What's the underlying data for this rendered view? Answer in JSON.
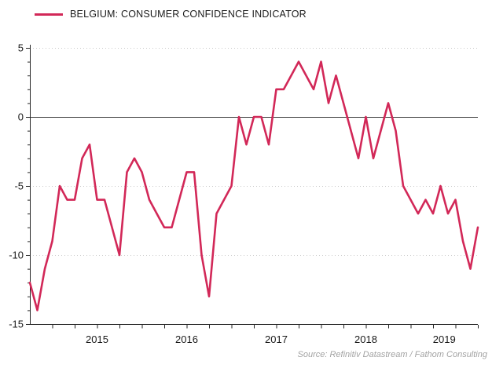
{
  "legend": {
    "label": "BELGIUM: CONSUMER CONFIDENCE INDICATOR"
  },
  "source": "Source: Refinitiv Datastream / Fathom Consulting",
  "colors": {
    "line": "#d22858",
    "zero_line": "#3f3f3f",
    "grid": "#c9c9c9",
    "axis": "#262626",
    "tick_label": "#1a1a1a",
    "source_text": "#a3a3a3",
    "background": "#ffffff"
  },
  "chart_data": {
    "type": "line",
    "title": "BELGIUM: CONSUMER CONFIDENCE INDICATOR",
    "frequency": "monthly",
    "x": [
      "2014-10",
      "2014-11",
      "2014-12",
      "2015-01",
      "2015-02",
      "2015-03",
      "2015-04",
      "2015-05",
      "2015-06",
      "2015-07",
      "2015-08",
      "2015-09",
      "2015-10",
      "2015-11",
      "2015-12",
      "2016-01",
      "2016-02",
      "2016-03",
      "2016-04",
      "2016-05",
      "2016-06",
      "2016-07",
      "2016-08",
      "2016-09",
      "2016-10",
      "2016-11",
      "2016-12",
      "2017-01",
      "2017-02",
      "2017-03",
      "2017-04",
      "2017-05",
      "2017-06",
      "2017-07",
      "2017-08",
      "2017-09",
      "2017-10",
      "2017-11",
      "2017-12",
      "2018-01",
      "2018-02",
      "2018-03",
      "2018-04",
      "2018-05",
      "2018-06",
      "2018-07",
      "2018-08",
      "2018-09",
      "2018-10",
      "2018-11",
      "2018-12",
      "2019-01",
      "2019-02",
      "2019-03",
      "2019-04",
      "2019-05",
      "2019-06",
      "2019-07",
      "2019-08",
      "2019-09",
      "2019-10"
    ],
    "values": [
      -12,
      -14,
      -11,
      -9,
      -5,
      -6,
      -6,
      -3,
      -2,
      -6,
      -6,
      -8,
      -10,
      -4,
      -3,
      -4,
      -6,
      -7,
      -8,
      -8,
      -6,
      -4,
      -4,
      -10,
      -13,
      -7,
      -6,
      -5,
      0,
      -2,
      0,
      0,
      -2,
      2,
      2,
      3,
      4,
      3,
      2,
      4,
      1,
      3,
      1,
      -1,
      -3,
      0,
      -3,
      -1,
      1,
      -1,
      -5,
      -6,
      -7,
      -6,
      -7,
      -5,
      -7,
      -6,
      -9,
      -11,
      -8
    ],
    "ylim": [
      -15,
      5
    ],
    "yticks_major": [
      5,
      0,
      -5,
      -10,
      -15
    ],
    "ytick_minor_step": 1,
    "ygrid_dotted": [
      5,
      -5,
      -10
    ],
    "zero_line_value": 0,
    "xtick_interval_months": 3,
    "year_labels": [
      "2015",
      "2016",
      "2017",
      "2018",
      "2019"
    ],
    "legend_position": "top-left",
    "grid": "horizontal dotted"
  }
}
